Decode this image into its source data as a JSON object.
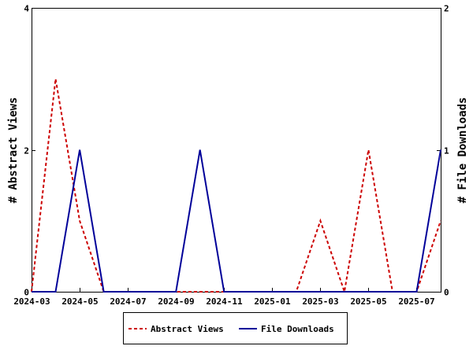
{
  "chart_data": {
    "type": "line",
    "title": "",
    "x_tick_labels": [
      "2024-03",
      "2024-05",
      "2024-07",
      "2024-09",
      "2024-11",
      "2025-01",
      "2025-03",
      "2025-05",
      "2025-07"
    ],
    "x": [
      "2024-03",
      "2024-04",
      "2024-05",
      "2024-06",
      "2024-07",
      "2024-08",
      "2024-09",
      "2024-10",
      "2024-11",
      "2024-12",
      "2025-01",
      "2025-02",
      "2025-03",
      "2025-04",
      "2025-05",
      "2025-06",
      "2025-07",
      "2025-08"
    ],
    "y_left": {
      "label": "# Abstract Views",
      "range": [
        0,
        4
      ],
      "ticks": [
        "0",
        "2",
        "4"
      ]
    },
    "y_right": {
      "label": "# File Downloads",
      "range": [
        0,
        2
      ],
      "ticks": [
        "0",
        "1",
        "2"
      ]
    },
    "series": [
      {
        "name": "Abstract Views",
        "axis": "left",
        "color": "#cc0000",
        "style": "dashed",
        "values": [
          0,
          3,
          1,
          0,
          0,
          0,
          0,
          0,
          0,
          0,
          0,
          0,
          1,
          0,
          2,
          0,
          0,
          1
        ]
      },
      {
        "name": "File Downloads",
        "axis": "right",
        "color": "#000099",
        "style": "solid",
        "values": [
          0,
          0,
          1,
          0,
          0,
          0,
          0,
          1,
          0,
          0,
          0,
          0,
          0,
          0,
          0,
          0,
          0,
          1
        ]
      }
    ],
    "grid": false,
    "legend_position": "bottom"
  }
}
